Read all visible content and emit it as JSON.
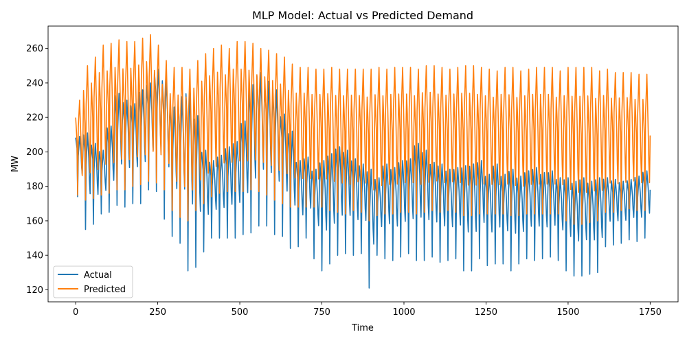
{
  "chart_data": {
    "type": "line",
    "title": "MLP Model: Actual vs Predicted Demand",
    "xlabel": "Time",
    "ylabel": "MW",
    "xlim": [
      -84,
      1835
    ],
    "ylim": [
      113,
      273
    ],
    "x_ticks": [
      0,
      250,
      500,
      750,
      1000,
      1250,
      1500,
      1750
    ],
    "y_ticks": [
      120,
      140,
      160,
      180,
      200,
      220,
      240,
      260
    ],
    "grid": false,
    "legend_position": "lower-left",
    "series": [
      {
        "name": "Actual",
        "color": "#1f77b4",
        "cycle_period": 24,
        "x_start": 0,
        "x_end": 1750,
        "phase_points": [
          [
            0,
            209
          ],
          [
            4,
            201
          ],
          [
            6,
            164
          ],
          [
            8,
            195
          ],
          [
            12,
            210
          ],
          [
            16,
            198
          ],
          [
            18,
            187
          ],
          [
            20,
            181
          ],
          [
            22,
            197
          ]
        ],
        "peaks": [
          209,
          211,
          205,
          201,
          215,
          234,
          230,
          228,
          236,
          240,
          248,
          243,
          226,
          232,
          236,
          221,
          201,
          195,
          198,
          203,
          206,
          218,
          239,
          246,
          241,
          236,
          222,
          212,
          195,
          197,
          190,
          195,
          199,
          203,
          201,
          196,
          193,
          190,
          185,
          193,
          191,
          195,
          196,
          205,
          201,
          194,
          193,
          190,
          191,
          192,
          193,
          195,
          187,
          193,
          187,
          190,
          186,
          189,
          191,
          188,
          189,
          185,
          185,
          183,
          185,
          183,
          185,
          185,
          184,
          183,
          184,
          186,
          189,
          187,
          188,
          184,
          185
        ],
        "troughs": [
          174,
          155,
          158,
          164,
          165,
          169,
          168,
          170,
          170,
          178,
          177,
          161,
          151,
          147,
          131,
          133,
          142,
          150,
          150,
          150,
          150,
          152,
          153,
          157,
          157,
          152,
          151,
          144,
          145,
          150,
          138,
          131,
          135,
          140,
          141,
          140,
          141,
          121,
          140,
          138,
          137,
          139,
          141,
          137,
          137,
          139,
          136,
          137,
          138,
          131,
          131,
          138,
          134,
          135,
          135,
          131,
          135,
          138,
          137,
          138,
          139,
          137,
          131,
          128,
          128,
          129,
          130,
          145,
          146,
          147,
          149,
          148,
          150,
          153,
          155,
          160,
          161
        ]
      },
      {
        "name": "Predicted",
        "color": "#ff7f0e",
        "cycle_period": 24,
        "x_start": 0,
        "x_end": 1750,
        "phase_points": [
          [
            0,
            215
          ],
          [
            4,
            203
          ],
          [
            6,
            175
          ],
          [
            8,
            210
          ],
          [
            12,
            224
          ],
          [
            16,
            204
          ],
          [
            18,
            192
          ],
          [
            20,
            185
          ],
          [
            22,
            202
          ]
        ],
        "peaks": [
          230,
          250,
          255,
          262,
          263,
          265,
          264,
          264,
          266,
          268,
          262,
          253,
          249,
          249,
          248,
          253,
          257,
          260,
          262,
          260,
          264,
          264,
          263,
          260,
          259,
          257,
          255,
          251,
          249,
          249,
          248,
          248,
          249,
          248,
          248,
          248,
          248,
          248,
          249,
          248,
          249,
          249,
          249,
          248,
          250,
          250,
          249,
          248,
          249,
          250,
          250,
          249,
          248,
          247,
          249,
          249,
          247,
          248,
          249,
          249,
          249,
          247,
          249,
          249,
          249,
          249,
          247,
          248,
          246,
          246,
          246,
          245,
          245,
          245,
          245,
          246,
          246
        ],
        "troughs": [
          175,
          172,
          173,
          175,
          176,
          178,
          178,
          180,
          181,
          183,
          182,
          178,
          166,
          162,
          160,
          166,
          170,
          174,
          176,
          177,
          177,
          177,
          178,
          177,
          175,
          172,
          170,
          168,
          168,
          168,
          168,
          168,
          166,
          165,
          164,
          166,
          165,
          160,
          163,
          164,
          164,
          165,
          165,
          164,
          165,
          166,
          165,
          166,
          165,
          163,
          163,
          164,
          164,
          164,
          164,
          163,
          163,
          164,
          164,
          164,
          164,
          164,
          160,
          158,
          158,
          159,
          160,
          165,
          165,
          166,
          167,
          166,
          166,
          167,
          168,
          168,
          168
        ]
      }
    ]
  }
}
